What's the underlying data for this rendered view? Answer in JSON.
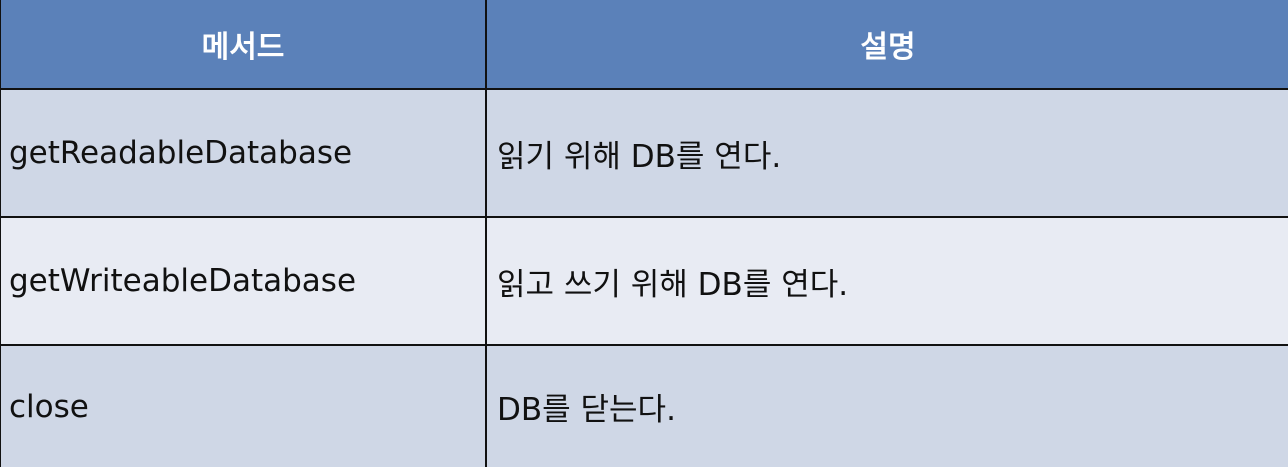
{
  "table": {
    "headers": {
      "method": "메서드",
      "description": "설명"
    },
    "rows": [
      {
        "method": "getReadableDatabase",
        "description": "읽기 위해 DB를 연다."
      },
      {
        "method": "getWriteableDatabase",
        "description": "읽고 쓰기 위해 DB를 연다."
      },
      {
        "method": "close",
        "description": "DB를 닫는다."
      }
    ],
    "colors": {
      "header_background": "#5b81b9",
      "header_text": "#ffffff",
      "row_odd_background": "#cfd7e6",
      "row_even_background": "#e8ebf3",
      "grid_line": "#111111"
    }
  }
}
